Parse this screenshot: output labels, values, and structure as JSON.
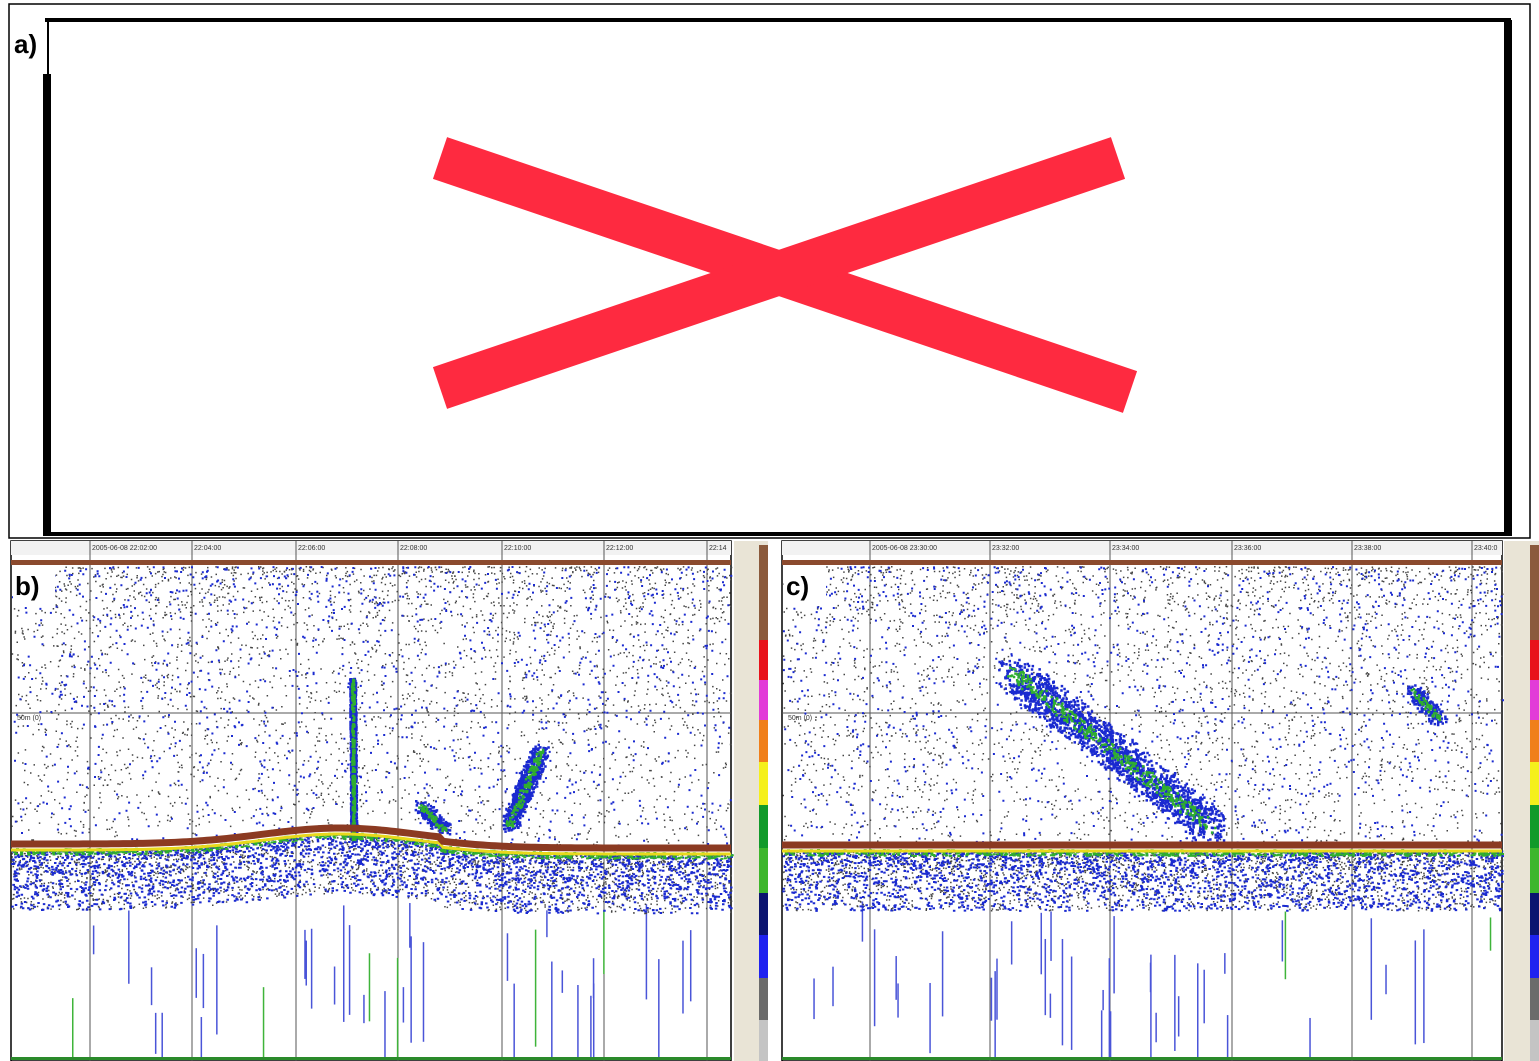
{
  "panels": [
    {
      "label": "a)"
    },
    {
      "label": "b)",
      "times": [
        "2005-06-08 22:02:00",
        "22:04:00",
        "22:06:00",
        "22:08:00",
        "22:10:00",
        "22:12:00",
        "22:14"
      ],
      "depth_label": "50m (0)"
    },
    {
      "label": "c)",
      "times": [
        "2005-06-08 23:30:00",
        "23:32:00",
        "23:34:00",
        "23:36:00",
        "23:38:00",
        "23:40:0"
      ],
      "depth_label": "50m (0)"
    }
  ]
}
